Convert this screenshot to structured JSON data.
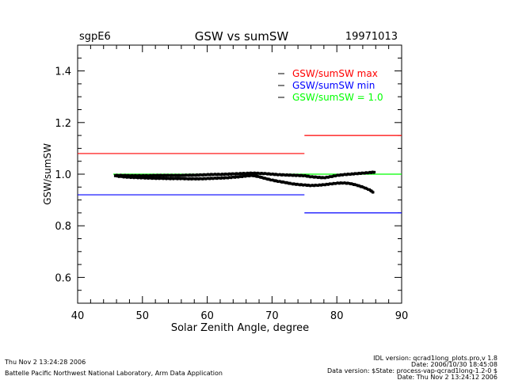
{
  "chart_data": {
    "type": "scatter",
    "title": "GSW vs sumSW",
    "left_label": "sgpE6",
    "right_label": "19971013",
    "xlabel": "Solar Zenith Angle, degree",
    "ylabel": "GSW/sumSW",
    "xlim": [
      40,
      90
    ],
    "ylim": [
      0.5,
      1.5
    ],
    "xticks": [
      40,
      50,
      60,
      70,
      80,
      90
    ],
    "yticks": [
      0.6,
      0.8,
      1.0,
      1.2,
      1.4
    ],
    "ytick_labels": [
      "0.6",
      "0.8",
      "1.0",
      "1.2",
      "1.4"
    ],
    "legend": [
      {
        "label": "GSW/sumSW max",
        "color": "#ff0000"
      },
      {
        "label": "GSW/sumSW min",
        "color": "#0000ff"
      },
      {
        "label": "GSW/sumSW = 1.0",
        "color": "#00ff00"
      }
    ],
    "reference_lines": [
      {
        "name": "max",
        "color": "#ff0000",
        "segments": [
          {
            "x": [
              40,
              75
            ],
            "y": 1.08
          },
          {
            "x": [
              75,
              90
            ],
            "y": 1.15
          }
        ]
      },
      {
        "name": "min",
        "color": "#0000ff",
        "segments": [
          {
            "x": [
              40,
              75
            ],
            "y": 0.92
          },
          {
            "x": [
              75,
              90
            ],
            "y": 0.85
          }
        ]
      },
      {
        "name": "one",
        "color": "#00ff00",
        "segments": [
          {
            "x": [
              45.5,
              90
            ],
            "y": 1.0
          }
        ]
      }
    ],
    "series": [
      {
        "name": "upper branch",
        "color": "#000000",
        "x": [
          45.8,
          47,
          48,
          49,
          50,
          51,
          52,
          53,
          54,
          55,
          56,
          57,
          58,
          59,
          60,
          61,
          62,
          63,
          64,
          65,
          66,
          67,
          68,
          69,
          70,
          71,
          72,
          73,
          74,
          75,
          76,
          77,
          78,
          79,
          80,
          81,
          82,
          83,
          84,
          85,
          85.8
        ],
        "y": [
          0.995,
          0.995,
          0.994,
          0.994,
          0.994,
          0.994,
          0.995,
          0.995,
          0.995,
          0.995,
          0.995,
          0.996,
          0.996,
          0.997,
          0.998,
          0.999,
          0.999,
          1.0,
          1.001,
          1.002,
          1.003,
          1.004,
          1.003,
          1.002,
          1.0,
          0.998,
          0.997,
          0.996,
          0.995,
          0.994,
          0.99,
          0.988,
          0.986,
          0.99,
          0.995,
          0.998,
          1.0,
          1.002,
          1.004,
          1.006,
          1.008
        ]
      },
      {
        "name": "lower branch",
        "color": "#000000",
        "x": [
          45.8,
          47,
          48,
          49,
          50,
          51,
          52,
          53,
          54,
          55,
          56,
          57,
          58,
          59,
          60,
          61,
          62,
          63,
          64,
          65,
          66,
          67,
          68,
          69,
          70,
          71,
          72,
          73,
          74,
          75,
          76,
          77,
          78,
          79,
          80,
          81,
          82,
          83,
          84,
          85,
          85.6
        ],
        "y": [
          0.993,
          0.99,
          0.988,
          0.987,
          0.986,
          0.985,
          0.984,
          0.984,
          0.983,
          0.983,
          0.983,
          0.982,
          0.982,
          0.982,
          0.983,
          0.984,
          0.985,
          0.986,
          0.988,
          0.99,
          0.993,
          0.995,
          0.99,
          0.983,
          0.977,
          0.972,
          0.968,
          0.963,
          0.96,
          0.958,
          0.956,
          0.957,
          0.959,
          0.962,
          0.965,
          0.966,
          0.964,
          0.958,
          0.95,
          0.94,
          0.93
        ]
      }
    ]
  },
  "footer": {
    "left1": "Thu Nov  2 13:24:28 2006",
    "left2": "Battelle Pacific Northwest National Laboratory, Arm Data Application",
    "right1": "IDL version: qcrad1long_plots.pro,v 1.8",
    "right2": "Date: 2006/10/30 18:45:08",
    "right3": "Data version: $State: process-vap-qcrad1long-1.2-0 $",
    "right4": "Date: Thu Nov  2 13:24:12 2006"
  }
}
